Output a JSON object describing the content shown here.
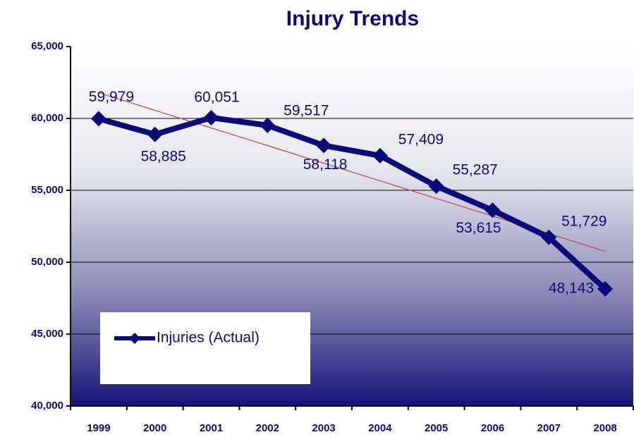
{
  "chart_data": {
    "type": "line",
    "title": "Injury Trends",
    "categories": [
      "1999",
      "2000",
      "2001",
      "2002",
      "2003",
      "2004",
      "2005",
      "2006",
      "2007",
      "2008"
    ],
    "series": [
      {
        "name": "Injuries (Actual)",
        "color": "#0a0a78",
        "values": [
          59979,
          58885,
          60051,
          59517,
          58118,
          57409,
          55287,
          53615,
          51729,
          48143
        ],
        "value_labels": [
          "59,979",
          "58,885",
          "60,051",
          "59,517",
          "58,118",
          "57,409",
          "55,287",
          "53,615",
          "51,729",
          "48,143"
        ]
      }
    ],
    "ylim": [
      40000,
      65000
    ],
    "yticks": [
      {
        "value": 40000,
        "label": "40,000"
      },
      {
        "value": 45000,
        "label": "45,000"
      },
      {
        "value": 50000,
        "label": "50,000"
      },
      {
        "value": 55000,
        "label": "55,000"
      },
      {
        "value": 60000,
        "label": "60,000"
      },
      {
        "value": 65000,
        "label": "65,000"
      }
    ],
    "grid": true,
    "legend": "lower left",
    "trendline": true,
    "trendline_color": "#c04050"
  }
}
